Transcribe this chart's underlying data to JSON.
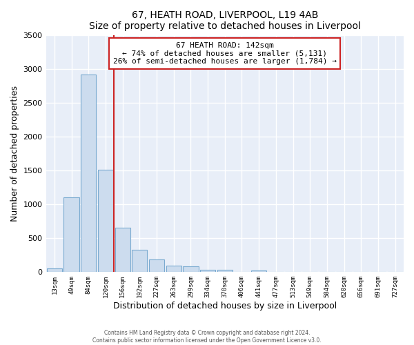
{
  "title": "67, HEATH ROAD, LIVERPOOL, L19 4AB",
  "subtitle": "Size of property relative to detached houses in Liverpool",
  "xlabel": "Distribution of detached houses by size in Liverpool",
  "ylabel": "Number of detached properties",
  "bar_labels": [
    "13sqm",
    "49sqm",
    "84sqm",
    "120sqm",
    "156sqm",
    "192sqm",
    "227sqm",
    "263sqm",
    "299sqm",
    "334sqm",
    "370sqm",
    "406sqm",
    "441sqm",
    "477sqm",
    "513sqm",
    "549sqm",
    "584sqm",
    "620sqm",
    "656sqm",
    "691sqm",
    "727sqm"
  ],
  "bar_values": [
    50,
    1100,
    2920,
    1510,
    650,
    330,
    190,
    100,
    80,
    30,
    30,
    0,
    25,
    0,
    0,
    0,
    0,
    0,
    0,
    0,
    0
  ],
  "bar_color": "#ccdcee",
  "bar_edge_color": "#7aaad0",
  "reference_line_label": "67 HEATH ROAD: 142sqm",
  "annotation_line1": "← 74% of detached houses are smaller (5,131)",
  "annotation_line2": "26% of semi-detached houses are larger (1,784) →",
  "annotation_box_facecolor": "#ffffff",
  "annotation_box_edgecolor": "#cc2222",
  "vline_color": "#cc2222",
  "vline_position": 3.5,
  "ylim": [
    0,
    3500
  ],
  "yticks": [
    0,
    500,
    1000,
    1500,
    2000,
    2500,
    3000,
    3500
  ],
  "fig_bg_color": "#ffffff",
  "plot_bg_color": "#e8eef8",
  "grid_color": "#ffffff",
  "footer_line1": "Contains HM Land Registry data © Crown copyright and database right 2024.",
  "footer_line2": "Contains public sector information licensed under the Open Government Licence v3.0."
}
